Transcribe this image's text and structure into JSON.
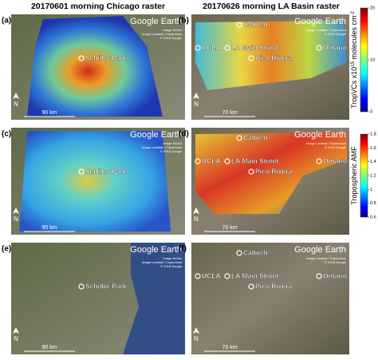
{
  "column_titles": [
    "20170601 morning Chicago raster",
    "20170626 morning LA Basin raster"
  ],
  "panels": [
    {
      "label": "(a)",
      "places": [
        "Schiller Park"
      ],
      "brand": "Google Earth",
      "credits": [
        "Image NOAA",
        "Image Landsat / Copernicus",
        "© 2018 Google"
      ],
      "north": "N",
      "scale": "90 km"
    },
    {
      "label": "(b)",
      "places": [
        "Caltech",
        "UCLA",
        "LA Main Street",
        "Pico Rivera",
        "Ontario"
      ],
      "brand": "Google Earth",
      "credits": [
        "Image Landsat / Copernicus",
        "© 2018 Google"
      ],
      "north": "N",
      "scale": "70 km"
    },
    {
      "label": "(c)",
      "places": [
        "Schiller Park"
      ],
      "brand": "Google Earth",
      "credits": [
        "Image NOAA",
        "Image Landsat / Copernicus",
        "© 2018 Google"
      ],
      "north": "N",
      "scale": "90 km"
    },
    {
      "label": "(d)",
      "places": [
        "Caltech",
        "UCLA",
        "LA Main Street",
        "Pico Rivera",
        "Ontario"
      ],
      "brand": "Google Earth",
      "credits": [
        "Image Landsat / Copernicus",
        "© 2018 Google"
      ],
      "north": "N",
      "scale": "70 km"
    },
    {
      "label": "(e)",
      "places": [
        "Schiller Park"
      ],
      "brand": "Google Earth",
      "credits": [
        "Image NOAA",
        "Image Landsat / Copernicus",
        "© 2018 Google"
      ],
      "north": "N",
      "scale": "90 km"
    },
    {
      "label": "(f)",
      "places": [
        "Caltech",
        "UCLA",
        "LA Main Street",
        "Pico Rivera",
        "Ontario"
      ],
      "brand": "Google Earth",
      "credits": [
        "Image Landsat / Copernicus",
        "© 2018 Google"
      ],
      "north": "N",
      "scale": "70 km"
    }
  ],
  "colorbars": [
    {
      "label_parts": [
        "TropVCs x10",
        "15",
        " molecules cm",
        "-2"
      ],
      "lim": [
        0,
        20
      ],
      "ticks": [
        0,
        10,
        20
      ]
    },
    {
      "label_parts": [
        "Tropospheric AMF"
      ],
      "lim": [
        0.6,
        1.8
      ],
      "ticks": [
        0.6,
        0.8,
        1,
        1.2,
        1.4,
        1.6,
        1.8
      ]
    }
  ]
}
